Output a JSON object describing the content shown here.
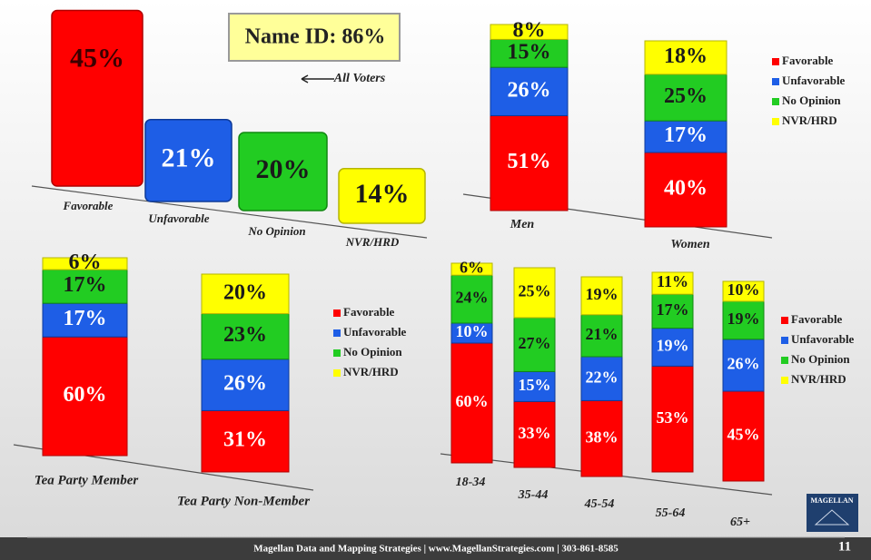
{
  "chart_data": [
    {
      "type": "bar",
      "categories": [
        "Favorable",
        "Unfavorable",
        "No Opinion",
        "NVR/HRD"
      ],
      "values": [
        45,
        21,
        20,
        14
      ],
      "value_labels": [
        "45%",
        "21%",
        "20%",
        "14%"
      ],
      "colors": [
        "#ff0000",
        "#1e5ee6",
        "#22cc22",
        "#ffff00"
      ],
      "annotations": [
        "Name ID: 86%",
        "All Voters"
      ]
    },
    {
      "type": "bar",
      "stacked": true,
      "categories": [
        "Men",
        "Women"
      ],
      "legend": "right",
      "series": [
        {
          "name": "Favorable",
          "color": "#ff0000",
          "values": [
            51,
            40
          ],
          "value_labels": [
            "51%",
            "40%"
          ]
        },
        {
          "name": "Unfavorable",
          "color": "#1e5ee6",
          "values": [
            26,
            17
          ],
          "value_labels": [
            "26%",
            "17%"
          ]
        },
        {
          "name": "No Opinion",
          "color": "#22cc22",
          "values": [
            15,
            25
          ],
          "value_labels": [
            "15%",
            "25%"
          ]
        },
        {
          "name": "NVR/HRD",
          "color": "#ffff00",
          "values": [
            8,
            18
          ],
          "value_labels": [
            "8%",
            "18%"
          ]
        }
      ]
    },
    {
      "type": "bar",
      "stacked": true,
      "categories": [
        "Tea Party Member",
        "Tea Party Non-Member"
      ],
      "legend": "right",
      "series": [
        {
          "name": "Favorable",
          "color": "#ff0000",
          "values": [
            60,
            31
          ],
          "value_labels": [
            "60%",
            "31%"
          ]
        },
        {
          "name": "Unfavorable",
          "color": "#1e5ee6",
          "values": [
            17,
            26
          ],
          "value_labels": [
            "17%",
            "26%"
          ]
        },
        {
          "name": "No Opinion",
          "color": "#22cc22",
          "values": [
            17,
            23
          ],
          "value_labels": [
            "17%",
            "23%"
          ]
        },
        {
          "name": "NVR/HRD",
          "color": "#ffff00",
          "values": [
            6,
            20
          ],
          "value_labels": [
            "6%",
            "20%"
          ]
        }
      ]
    },
    {
      "type": "bar",
      "stacked": true,
      "categories": [
        "18-34",
        "35-44",
        "45-54",
        "55-64",
        "65+"
      ],
      "legend": "right",
      "series": [
        {
          "name": "Favorable",
          "color": "#ff0000",
          "values": [
            60,
            33,
            38,
            53,
            45
          ],
          "value_labels": [
            "60%",
            "33%",
            "38%",
            "53%",
            "45%"
          ]
        },
        {
          "name": "Unfavorable",
          "color": "#1e5ee6",
          "values": [
            10,
            15,
            22,
            19,
            26
          ],
          "value_labels": [
            "10%",
            "15%",
            "22%",
            "19%",
            "26%"
          ]
        },
        {
          "name": "No Opinion",
          "color": "#22cc22",
          "values": [
            24,
            27,
            21,
            17,
            19
          ],
          "value_labels": [
            "24%",
            "27%",
            "21%",
            "17%",
            "19%"
          ]
        },
        {
          "name": "NVR/HRD",
          "color": "#ffff00",
          "values": [
            6,
            25,
            19,
            11,
            10
          ],
          "value_labels": [
            "6%",
            "25%",
            "19%",
            "11%",
            "10%"
          ]
        }
      ]
    }
  ],
  "footer": {
    "text": "Magellan Data and Mapping Strategies | www.MagellanStrategies.com | 303-861-8585",
    "page": "11"
  },
  "logo": "MAGELLAN"
}
